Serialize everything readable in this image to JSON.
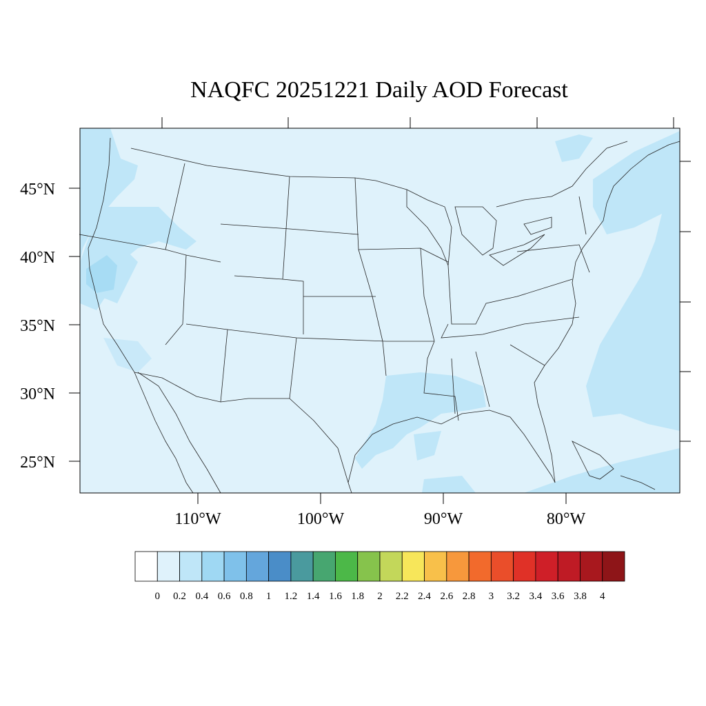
{
  "title": "NAQFC 20251221 Daily AOD Forecast",
  "lat_labels": [
    "45°N",
    "40°N",
    "35°N",
    "30°N",
    "25°N"
  ],
  "lon_labels": [
    "110°W",
    "100°W",
    "90°W",
    "80°W"
  ],
  "colorbar": {
    "labels": [
      "0",
      "0.2",
      "0.4",
      "0.6",
      "0.8",
      "1",
      "1.2",
      "1.4",
      "1.6",
      "1.8",
      "2",
      "2.2",
      "2.4",
      "2.6",
      "2.8",
      "3",
      "3.2",
      "3.4",
      "3.6",
      "3.8",
      "4"
    ],
    "colors": [
      "#ffffff",
      "#dff2fb",
      "#bfe6f8",
      "#9fd8f3",
      "#7fc1ea",
      "#64a6dc",
      "#4a8dc8",
      "#4a9a9e",
      "#47a670",
      "#4cb848",
      "#86c34c",
      "#c3d75a",
      "#f7e65a",
      "#f8c04a",
      "#f7983c",
      "#f26a2c",
      "#ea4e2a",
      "#e03127",
      "#cf1f28",
      "#bf1b25",
      "#a8181e",
      "#8e1518"
    ]
  },
  "map": {
    "background_color": "#dff2fb",
    "ocean_color": "#c6e8f8",
    "high_aod_color": "#a7dcf4"
  }
}
